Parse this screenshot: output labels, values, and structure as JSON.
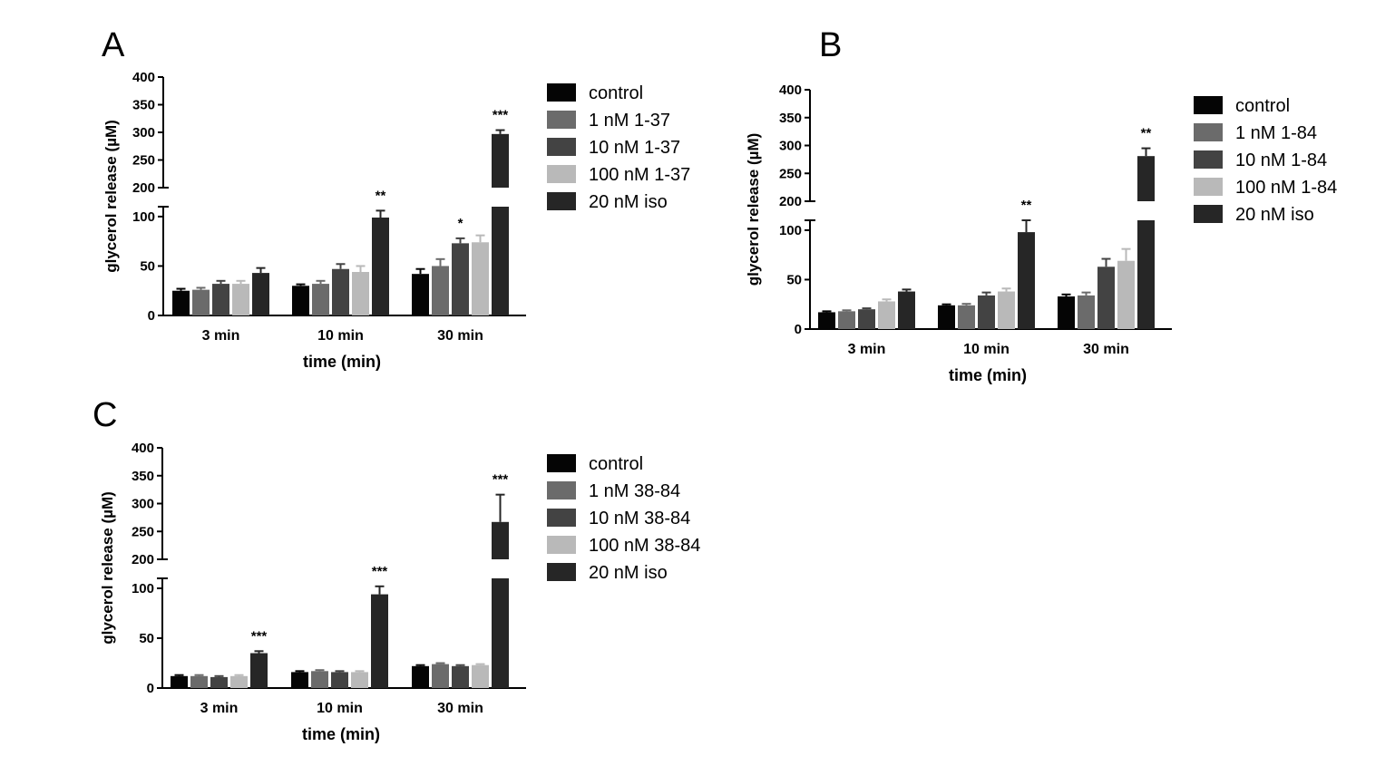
{
  "colors": {
    "control": "#050505",
    "low": "#6b6b6b",
    "mid": "#434343",
    "high": "#b9b9b9",
    "iso": "#262626"
  },
  "chart_data": [
    {
      "panel": "A",
      "type": "bar",
      "ylabel": "glycerol release (µM)",
      "xlabel": "time (min)",
      "axis_break": {
        "lower_range": [
          0,
          110
        ],
        "upper_range": [
          200,
          400
        ]
      },
      "lower_ticks": [
        "0",
        "50",
        "100"
      ],
      "upper_ticks": [
        "200",
        "250",
        "300",
        "350",
        "400"
      ],
      "categories": [
        "3 min",
        "10 min",
        "30 min"
      ],
      "series": [
        {
          "name": "control",
          "color_key": "control",
          "values": [
            25,
            30,
            42
          ],
          "errors": [
            2,
            1.5,
            5
          ]
        },
        {
          "name": " 1 nM 1-37",
          "color_key": "low",
          "values": [
            26,
            32,
            50
          ],
          "errors": [
            2,
            3,
            7
          ]
        },
        {
          "name": "10 nM 1-37",
          "color_key": "mid",
          "values": [
            32,
            47,
            73
          ],
          "errors": [
            3,
            5,
            5
          ]
        },
        {
          "name": "100 nM 1-37",
          "color_key": "high",
          "values": [
            32,
            44,
            74
          ],
          "errors": [
            3,
            6,
            7
          ]
        },
        {
          "name": "20 nM iso",
          "color_key": "iso",
          "values": [
            43,
            99,
            297
          ],
          "errors": [
            5,
            7,
            7
          ]
        }
      ],
      "annotations": [
        {
          "category_index": 1,
          "series_index": 4,
          "text": "**"
        },
        {
          "category_index": 2,
          "series_index": 2,
          "text": "*"
        },
        {
          "category_index": 2,
          "series_index": 4,
          "text": "***"
        }
      ]
    },
    {
      "panel": "B",
      "type": "bar",
      "ylabel": "glycerol release (µM)",
      "xlabel": "time (min)",
      "axis_break": {
        "lower_range": [
          0,
          110
        ],
        "upper_range": [
          200,
          400
        ]
      },
      "lower_ticks": [
        "0",
        "50",
        "100"
      ],
      "upper_ticks": [
        "200",
        "250",
        "300",
        "350",
        "400"
      ],
      "categories": [
        "3 min",
        "10 min",
        "30 min"
      ],
      "series": [
        {
          "name": "control",
          "color_key": "control",
          "values": [
            17,
            24,
            33
          ],
          "errors": [
            1,
            1,
            2
          ]
        },
        {
          "name": " 1 nM 1-84",
          "color_key": "low",
          "values": [
            18,
            24,
            34
          ],
          "errors": [
            1,
            1.5,
            3
          ]
        },
        {
          "name": "10 nM 1-84",
          "color_key": "mid",
          "values": [
            20,
            34,
            63
          ],
          "errors": [
            1,
            3,
            8
          ]
        },
        {
          "name": "100 nM 1-84",
          "color_key": "high",
          "values": [
            28,
            38,
            69
          ],
          "errors": [
            2,
            3,
            12
          ]
        },
        {
          "name": "20 nM iso",
          "color_key": "iso",
          "values": [
            38,
            98,
            281
          ],
          "errors": [
            2,
            12,
            14
          ]
        }
      ],
      "annotations": [
        {
          "category_index": 1,
          "series_index": 4,
          "text": "**"
        },
        {
          "category_index": 2,
          "series_index": 4,
          "text": "**"
        }
      ]
    },
    {
      "panel": "C",
      "type": "bar",
      "ylabel": "glycerol release (µM)",
      "xlabel": "time (min)",
      "axis_break": {
        "lower_range": [
          0,
          110
        ],
        "upper_range": [
          200,
          400
        ]
      },
      "lower_ticks": [
        "0",
        "50",
        "100"
      ],
      "upper_ticks": [
        "200",
        "250",
        "300",
        "350",
        "400"
      ],
      "categories": [
        "3 min",
        "10 min",
        "30 min"
      ],
      "series": [
        {
          "name": "control",
          "color_key": "control",
          "values": [
            12,
            16,
            22
          ],
          "errors": [
            1,
            1,
            1
          ]
        },
        {
          "name": " 1 nM 38-84",
          "color_key": "low",
          "values": [
            12,
            17,
            24
          ],
          "errors": [
            1,
            1,
            1
          ]
        },
        {
          "name": "10 nM 38-84",
          "color_key": "mid",
          "values": [
            11,
            16,
            22
          ],
          "errors": [
            1,
            1,
            1
          ]
        },
        {
          "name": "100 nM 38-84",
          "color_key": "high",
          "values": [
            12,
            16,
            23
          ],
          "errors": [
            1,
            1,
            1
          ]
        },
        {
          "name": "20 nM iso",
          "color_key": "iso",
          "values": [
            35,
            94,
            267
          ],
          "errors": [
            2,
            8,
            49
          ]
        }
      ],
      "annotations": [
        {
          "category_index": 0,
          "series_index": 4,
          "text": "***"
        },
        {
          "category_index": 1,
          "series_index": 4,
          "text": "***"
        },
        {
          "category_index": 2,
          "series_index": 4,
          "text": "***"
        }
      ]
    }
  ]
}
